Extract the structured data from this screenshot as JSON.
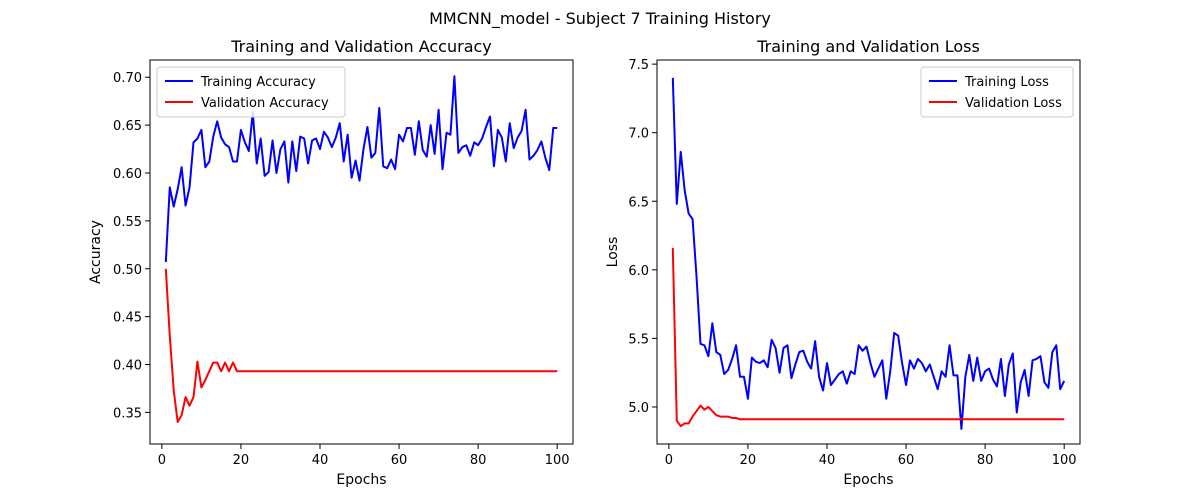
{
  "suptitle": "MMCNN_model - Subject 7 Training History",
  "chart_data": [
    {
      "type": "line",
      "title": "Training and Validation Accuracy",
      "xlabel": "Epochs",
      "ylabel": "Accuracy",
      "xlim": [
        -3,
        104
      ],
      "ylim": [
        0.317,
        0.718
      ],
      "xticks": [
        0,
        20,
        40,
        60,
        80,
        100
      ],
      "yticks": [
        0.35,
        0.4,
        0.45,
        0.5,
        0.55,
        0.6,
        0.65,
        0.7
      ],
      "ytick_labels": [
        "0.35",
        "0.40",
        "0.45",
        "0.50",
        "0.55",
        "0.60",
        "0.65",
        "0.70"
      ],
      "legend_position": "upper-left",
      "grid": false,
      "series": [
        {
          "name": "Training Accuracy",
          "color": "#0000ff",
          "x_start": 1,
          "values": [
            0.507,
            0.585,
            0.565,
            0.583,
            0.606,
            0.566,
            0.585,
            0.632,
            0.636,
            0.645,
            0.606,
            0.612,
            0.638,
            0.654,
            0.637,
            0.63,
            0.627,
            0.612,
            0.612,
            0.645,
            0.632,
            0.623,
            0.663,
            0.61,
            0.636,
            0.597,
            0.601,
            0.634,
            0.6,
            0.625,
            0.633,
            0.59,
            0.633,
            0.602,
            0.638,
            0.636,
            0.61,
            0.634,
            0.636,
            0.625,
            0.643,
            0.637,
            0.627,
            0.637,
            0.652,
            0.612,
            0.64,
            0.595,
            0.613,
            0.592,
            0.625,
            0.648,
            0.616,
            0.621,
            0.668,
            0.607,
            0.605,
            0.614,
            0.604,
            0.64,
            0.633,
            0.647,
            0.647,
            0.619,
            0.654,
            0.624,
            0.617,
            0.65,
            0.62,
            0.666,
            0.604,
            0.642,
            0.64,
            0.701,
            0.621,
            0.627,
            0.629,
            0.618,
            0.632,
            0.629,
            0.636,
            0.648,
            0.659,
            0.607,
            0.645,
            0.637,
            0.612,
            0.652,
            0.626,
            0.637,
            0.644,
            0.666,
            0.614,
            0.618,
            0.624,
            0.633,
            0.616,
            0.603,
            0.647,
            0.647
          ]
        },
        {
          "name": "Validation Accuracy",
          "color": "#ff0000",
          "x_start": 1,
          "values": [
            0.5,
            0.43,
            0.373,
            0.34,
            0.347,
            0.366,
            0.357,
            0.366,
            0.403,
            0.376,
            0.384,
            0.393,
            0.402,
            0.402,
            0.393,
            0.402,
            0.393,
            0.402,
            0.393,
            0.393,
            0.393,
            0.393,
            0.393,
            0.393,
            0.393,
            0.393,
            0.393,
            0.393,
            0.393,
            0.393,
            0.393,
            0.393,
            0.393,
            0.393,
            0.393,
            0.393,
            0.393,
            0.393,
            0.393,
            0.393,
            0.393,
            0.393,
            0.393,
            0.393,
            0.393,
            0.393,
            0.393,
            0.393,
            0.393,
            0.393,
            0.393,
            0.393,
            0.393,
            0.393,
            0.393,
            0.393,
            0.393,
            0.393,
            0.393,
            0.393,
            0.393,
            0.393,
            0.393,
            0.393,
            0.393,
            0.393,
            0.393,
            0.393,
            0.393,
            0.393,
            0.393,
            0.393,
            0.393,
            0.393,
            0.393,
            0.393,
            0.393,
            0.393,
            0.393,
            0.393,
            0.393,
            0.393,
            0.393,
            0.393,
            0.393,
            0.393,
            0.393,
            0.393,
            0.393,
            0.393,
            0.393,
            0.393,
            0.393,
            0.393,
            0.393,
            0.393,
            0.393,
            0.393,
            0.393,
            0.393
          ]
        }
      ]
    },
    {
      "type": "line",
      "title": "Training and Validation Loss",
      "xlabel": "Epochs",
      "ylabel": "Loss",
      "xlim": [
        -3,
        104
      ],
      "ylim": [
        4.73,
        7.53
      ],
      "xticks": [
        0,
        20,
        40,
        60,
        80,
        100
      ],
      "yticks": [
        5.0,
        5.5,
        6.0,
        6.5,
        7.0,
        7.5
      ],
      "ytick_labels": [
        "5.0",
        "5.5",
        "6.0",
        "6.5",
        "7.0",
        "7.5"
      ],
      "legend_position": "upper-right",
      "grid": false,
      "series": [
        {
          "name": "Training Loss",
          "color": "#0000ff",
          "x_start": 1,
          "values": [
            7.4,
            6.48,
            6.86,
            6.58,
            6.41,
            6.37,
            5.95,
            5.46,
            5.45,
            5.37,
            5.61,
            5.4,
            5.38,
            5.24,
            5.27,
            5.35,
            5.45,
            5.22,
            5.22,
            5.06,
            5.36,
            5.33,
            5.32,
            5.34,
            5.29,
            5.49,
            5.43,
            5.25,
            5.43,
            5.45,
            5.21,
            5.31,
            5.4,
            5.41,
            5.33,
            5.28,
            5.48,
            5.22,
            5.12,
            5.32,
            5.16,
            5.2,
            5.24,
            5.26,
            5.17,
            5.26,
            5.24,
            5.45,
            5.41,
            5.44,
            5.32,
            5.22,
            5.28,
            5.34,
            5.06,
            5.26,
            5.54,
            5.52,
            5.32,
            5.16,
            5.34,
            5.28,
            5.35,
            5.32,
            5.26,
            5.31,
            5.22,
            5.13,
            5.26,
            5.22,
            5.45,
            5.23,
            5.23,
            4.84,
            5.22,
            5.38,
            5.19,
            5.36,
            5.19,
            5.26,
            5.28,
            5.2,
            5.15,
            5.35,
            5.08,
            5.31,
            5.39,
            4.96,
            5.18,
            5.27,
            5.08,
            5.34,
            5.35,
            5.37,
            5.18,
            5.14,
            5.4,
            5.45,
            5.13,
            5.19
          ]
        },
        {
          "name": "Validation Loss",
          "color": "#ff0000",
          "x_start": 1,
          "values": [
            6.16,
            4.9,
            4.86,
            4.88,
            4.88,
            4.93,
            4.97,
            5.01,
            4.98,
            5.0,
            4.97,
            4.94,
            4.93,
            4.93,
            4.93,
            4.92,
            4.92,
            4.91,
            4.91,
            4.91,
            4.91,
            4.91,
            4.91,
            4.91,
            4.91,
            4.91,
            4.91,
            4.91,
            4.91,
            4.91,
            4.91,
            4.91,
            4.91,
            4.91,
            4.91,
            4.91,
            4.91,
            4.91,
            4.91,
            4.91,
            4.91,
            4.91,
            4.91,
            4.91,
            4.91,
            4.91,
            4.91,
            4.91,
            4.91,
            4.91,
            4.91,
            4.91,
            4.91,
            4.91,
            4.91,
            4.91,
            4.91,
            4.91,
            4.91,
            4.91,
            4.91,
            4.91,
            4.91,
            4.91,
            4.91,
            4.91,
            4.91,
            4.91,
            4.91,
            4.91,
            4.91,
            4.91,
            4.91,
            4.91,
            4.91,
            4.91,
            4.91,
            4.91,
            4.91,
            4.91,
            4.91,
            4.91,
            4.91,
            4.91,
            4.91,
            4.91,
            4.91,
            4.91,
            4.91,
            4.91,
            4.91,
            4.91,
            4.91,
            4.91,
            4.91,
            4.91,
            4.91,
            4.91,
            4.91,
            4.91
          ]
        }
      ]
    }
  ]
}
